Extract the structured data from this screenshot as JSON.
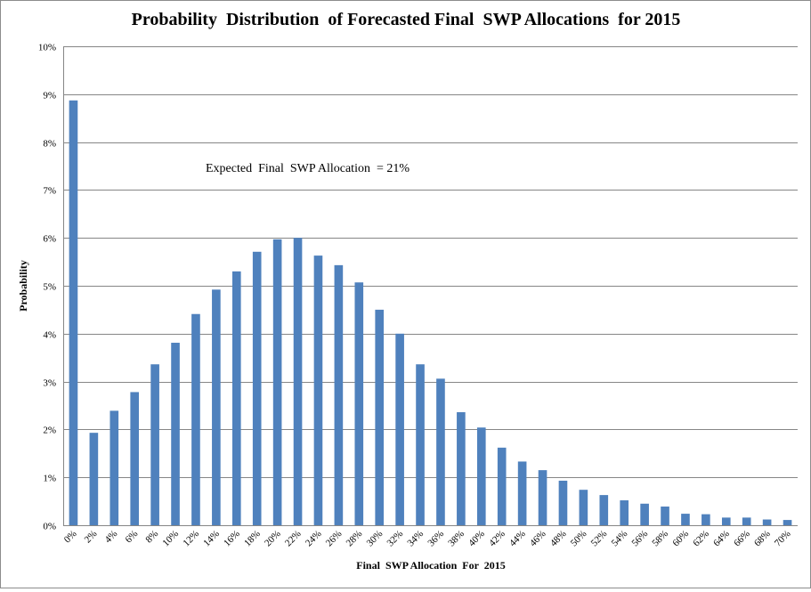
{
  "chart_data": {
    "type": "bar",
    "title": "Probability  Distribution  of Forecasted Final  SWP Allocations  for 2015",
    "xlabel": "Final  SWP Allocation  For  2015",
    "ylabel": "Probability",
    "annotation": "Expected  Final  SWP Allocation  = 21%",
    "ylim": [
      0,
      10
    ],
    "y_ticks": [
      "0%",
      "1%",
      "2%",
      "3%",
      "4%",
      "5%",
      "6%",
      "7%",
      "8%",
      "9%",
      "10%"
    ],
    "categories": [
      "0%",
      "2%",
      "4%",
      "6%",
      "8%",
      "10%",
      "12%",
      "14%",
      "16%",
      "18%",
      "20%",
      "22%",
      "24%",
      "26%",
      "28%",
      "30%",
      "32%",
      "34%",
      "36%",
      "38%",
      "40%",
      "42%",
      "44%",
      "46%",
      "48%",
      "50%",
      "52%",
      "54%",
      "56%",
      "58%",
      "60%",
      "62%",
      "64%",
      "66%",
      "68%",
      "70%"
    ],
    "values": [
      8.87,
      1.93,
      2.39,
      2.78,
      3.36,
      3.81,
      4.41,
      4.92,
      5.3,
      5.71,
      5.97,
      6.0,
      5.63,
      5.43,
      5.07,
      4.5,
      4.0,
      3.36,
      3.06,
      2.36,
      2.04,
      1.62,
      1.33,
      1.15,
      0.93,
      0.74,
      0.63,
      0.52,
      0.45,
      0.39,
      0.24,
      0.23,
      0.16,
      0.16,
      0.12,
      0.11
    ],
    "grid": true,
    "legend": "none",
    "bar_color": "#4F81BD"
  }
}
